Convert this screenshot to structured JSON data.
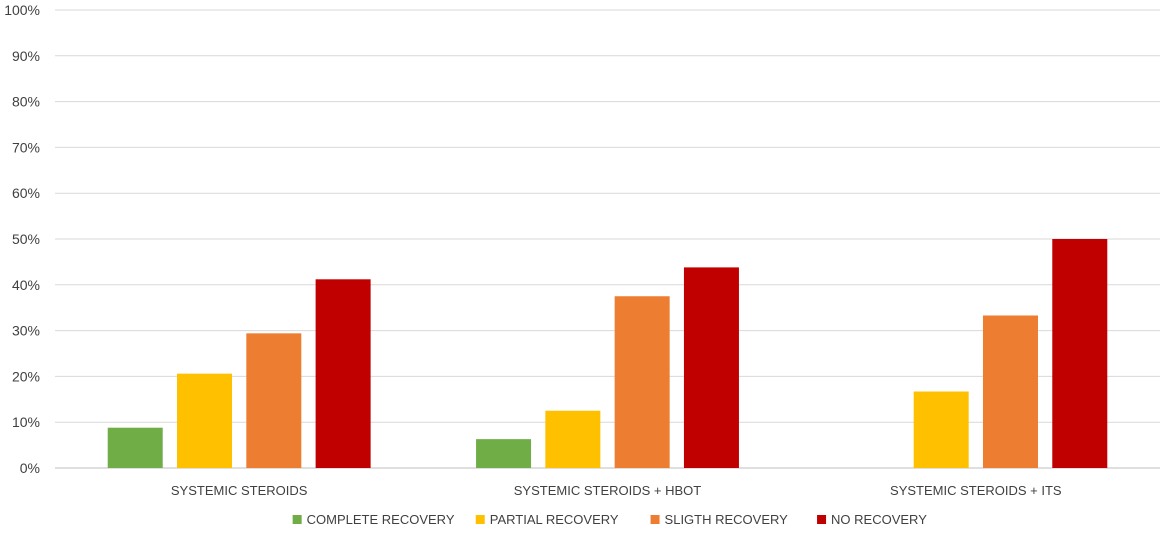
{
  "chart_data": {
    "type": "bar",
    "categories": [
      "SYSTEMIC STEROIDS",
      "SYSTEMIC STEROIDS + HBOT",
      "SYSTEMIC STEROIDS + ITS"
    ],
    "series": [
      {
        "name": "COMPLETE RECOVERY",
        "color": "#70AD47",
        "values": [
          8.8,
          6.3,
          0
        ]
      },
      {
        "name": "PARTIAL RECOVERY",
        "color": "#FFC000",
        "values": [
          20.6,
          12.5,
          16.7
        ]
      },
      {
        "name": "SLIGTH RECOVERY",
        "color": "#ED7D31",
        "values": [
          29.4,
          37.5,
          33.3
        ]
      },
      {
        "name": "NO RECOVERY",
        "color": "#C00000",
        "values": [
          41.2,
          43.8,
          50.0
        ]
      }
    ],
    "y_ticks": [
      "0%",
      "10%",
      "20%",
      "30%",
      "40%",
      "50%",
      "60%",
      "70%",
      "80%",
      "90%",
      "100%"
    ],
    "ylim": [
      0,
      100
    ],
    "grid": true,
    "legend_position": "bottom",
    "title": "",
    "xlabel": "",
    "ylabel": ""
  }
}
